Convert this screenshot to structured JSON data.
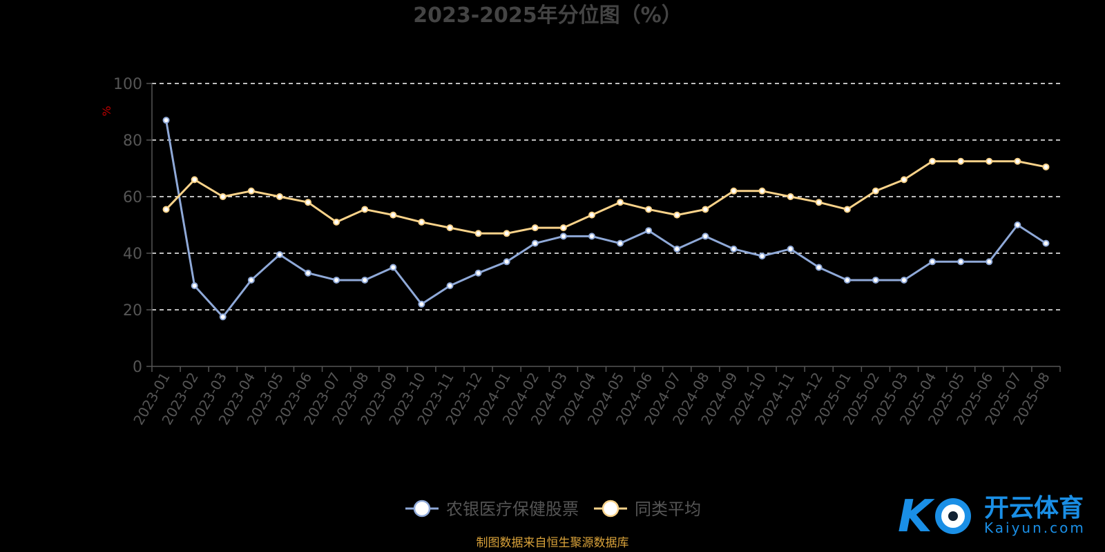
{
  "chart_data": {
    "type": "line",
    "title": "2023-2025年分位图（%）",
    "y_unit": "%",
    "ylim": [
      0,
      100
    ],
    "y_ticks": [
      0,
      20,
      40,
      60,
      80,
      100
    ],
    "grid": true,
    "legend_placement": "bottom",
    "categories": [
      "2023-01",
      "2023-02",
      "2023-03",
      "2023-04",
      "2023-05",
      "2023-06",
      "2023-07",
      "2023-08",
      "2023-09",
      "2023-10",
      "2023-11",
      "2023-12",
      "2024-01",
      "2024-02",
      "2024-03",
      "2024-04",
      "2024-05",
      "2024-06",
      "2024-07",
      "2024-08",
      "2024-09",
      "2024-10",
      "2024-11",
      "2024-12",
      "2025-01",
      "2025-02",
      "2025-03",
      "2025-04",
      "2025-05",
      "2025-06",
      "2025-07",
      "2025-08"
    ],
    "series": [
      {
        "name": "农银医疗保健股票",
        "color": "#8fa9d8",
        "values": [
          87,
          28.5,
          17.5,
          30.5,
          39.5,
          33,
          30.5,
          30.5,
          35,
          22,
          28.5,
          33,
          37,
          43.5,
          46,
          46,
          43.5,
          48,
          41.5,
          46,
          41.5,
          39,
          41.5,
          35,
          30.5,
          30.5,
          30.5,
          37,
          37,
          37,
          50,
          43.5
        ]
      },
      {
        "name": "同类平均",
        "color": "#fad38a",
        "values": [
          55.5,
          66,
          60,
          62,
          60,
          58,
          51,
          55.5,
          53.5,
          51,
          49,
          47,
          47,
          49,
          49,
          53.5,
          58,
          55.5,
          53.5,
          55.5,
          62,
          62,
          60,
          58,
          55.5,
          62,
          66,
          72.5,
          72.5,
          72.5,
          72.5,
          70.5
        ]
      }
    ]
  },
  "footer": {
    "source": "制图数据来自恒生聚源数据库"
  },
  "watermark": {
    "cn": "开云体育",
    "en": "Kaiyun.com"
  }
}
